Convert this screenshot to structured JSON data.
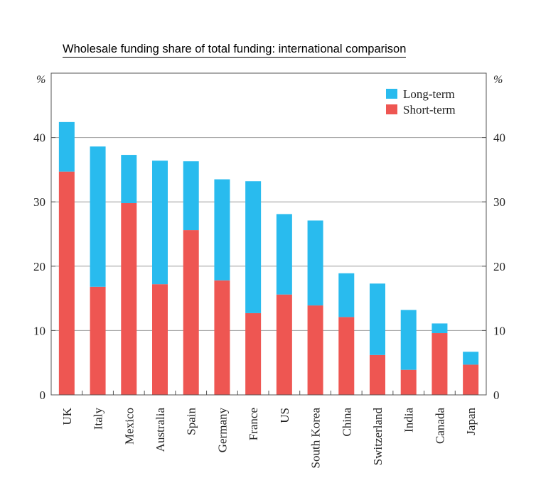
{
  "chart_data": {
    "type": "bar",
    "stacked": true,
    "title": "Wholesale funding share of total funding: international comparison",
    "unit_left": "%",
    "unit_right": "%",
    "ylim": [
      0,
      50
    ],
    "yticks": [
      0,
      10,
      20,
      30,
      40
    ],
    "grid": true,
    "legend_position": "top-right",
    "categories": [
      "UK",
      "Italy",
      "Mexico",
      "Australia",
      "Spain",
      "Germany",
      "France",
      "US",
      "South Korea",
      "China",
      "Switzerland",
      "India",
      "Canada",
      "Japan"
    ],
    "series": [
      {
        "name": "Short-term",
        "color": "#EE5652",
        "values": [
          34.7,
          16.8,
          29.8,
          17.2,
          25.6,
          17.8,
          12.7,
          15.6,
          13.9,
          12.1,
          6.2,
          3.9,
          9.6,
          4.7
        ]
      },
      {
        "name": "Long-term",
        "color": "#29BBEE",
        "values": [
          7.7,
          21.8,
          7.5,
          19.2,
          10.7,
          15.7,
          20.5,
          12.5,
          13.2,
          6.8,
          11.1,
          9.3,
          1.5,
          2.0
        ]
      }
    ],
    "legend_order": [
      "Long-term",
      "Short-term"
    ]
  }
}
